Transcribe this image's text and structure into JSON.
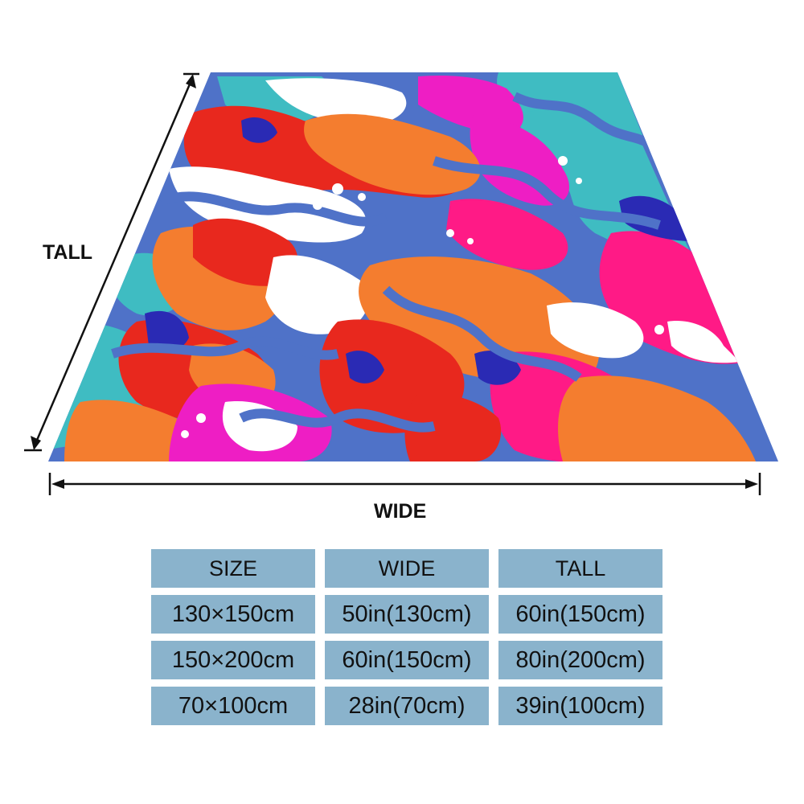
{
  "diagram": {
    "tall_label": "TALL",
    "wide_label": "WIDE"
  },
  "blanket": {
    "pattern": "abstract colorful blobs",
    "colors": {
      "royal_blue": "#4f72c8",
      "red": "#e8281e",
      "orange": "#f47d2f",
      "pink": "#ff1a86",
      "magenta": "#ee1ec4",
      "teal": "#3fbcc2",
      "indigo": "#2a2ab4",
      "white": "#ffffff"
    }
  },
  "size_table": {
    "headers": [
      "SIZE",
      "WIDE",
      "TALL"
    ],
    "rows": [
      [
        "130×150cm",
        "50in(130cm)",
        "60in(150cm)"
      ],
      [
        "150×200cm",
        "60in(150cm)",
        "80in(200cm)"
      ],
      [
        "70×100cm",
        "28in(70cm)",
        "39in(100cm)"
      ]
    ],
    "cell_color": "#8ab3cc"
  }
}
